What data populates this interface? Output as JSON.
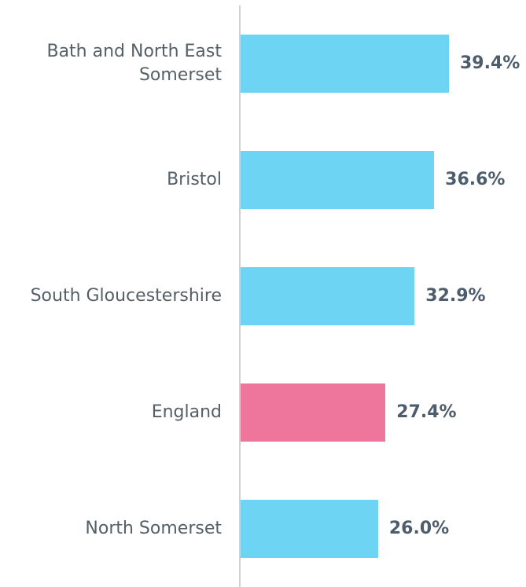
{
  "chart_data": {
    "type": "hbar",
    "categories": [
      "Bath and North East Somerset",
      "Bristol",
      "South Gloucestershire",
      "England",
      "North Somerset"
    ],
    "values": [
      39.4,
      36.6,
      32.9,
      27.4,
      26.0
    ],
    "value_labels": [
      "39.4%",
      "36.6%",
      "32.9%",
      "27.4%",
      "26.0%"
    ],
    "colors": [
      "#6dd5f3",
      "#6dd5f3",
      "#6dd5f3",
      "#ee769d",
      "#6dd5f3"
    ]
  }
}
